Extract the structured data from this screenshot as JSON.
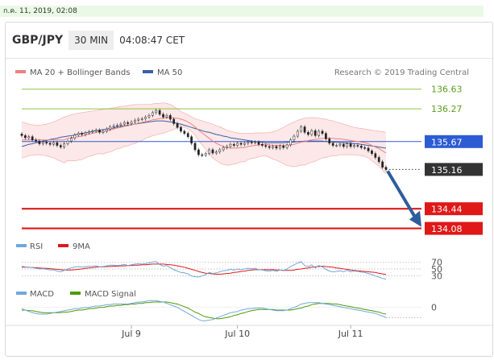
{
  "timestamp": "ก.ค. 11, 2019, 02:08",
  "header": {
    "pair": "GBP/JPY",
    "timeframe": "30 MIN",
    "time": "04:08:47 CET"
  },
  "legend": {
    "ma20": "MA 20 + Bollinger Bands",
    "ma50": "MA 50",
    "credit": "Research © 2019 Trading Central"
  },
  "colors": {
    "ma20": "#f08080",
    "ma50": "#3a5fa6",
    "green_line": "#8cc63f",
    "red_line": "#e01818",
    "blue_line": "#2d5bd4",
    "arrow": "#2e5d9e",
    "rsi": "#6fa8dc",
    "rsi_ma": "#e01818",
    "macd": "#6fa8dc",
    "macd_signal": "#4e9a06"
  },
  "chart_data": {
    "type": "line",
    "x_ticks": [
      "Jul 9",
      "Jul 10",
      "Jul 11"
    ],
    "price": {
      "ylim": [
        134.0,
        136.7
      ],
      "levels": [
        {
          "value": 136.63,
          "label": "136.63",
          "style": "green"
        },
        {
          "value": 136.27,
          "label": "136.27",
          "style": "green"
        },
        {
          "value": 135.67,
          "label": "135.67",
          "style": "blue"
        },
        {
          "value": 135.16,
          "label": "135.16",
          "style": "last"
        },
        {
          "value": 134.44,
          "label": "134.44",
          "style": "red"
        },
        {
          "value": 134.08,
          "label": "134.08",
          "style": "red"
        }
      ],
      "close": [
        135.78,
        135.74,
        135.76,
        135.7,
        135.68,
        135.63,
        135.66,
        135.64,
        135.62,
        135.65,
        135.6,
        135.57,
        135.63,
        135.68,
        135.73,
        135.79,
        135.82,
        135.8,
        135.83,
        135.85,
        135.86,
        135.88,
        135.84,
        135.86,
        135.9,
        135.94,
        135.96,
        135.97,
        135.99,
        136.02,
        136.0,
        136.03,
        136.06,
        136.08,
        136.09,
        136.12,
        136.15,
        136.2,
        136.24,
        136.17,
        136.12,
        136.15,
        136.08,
        136.0,
        135.93,
        135.86,
        135.82,
        135.76,
        135.64,
        135.52,
        135.43,
        135.42,
        135.45,
        135.52,
        135.46,
        135.48,
        135.52,
        135.56,
        135.58,
        135.62,
        135.6,
        135.64,
        135.62,
        135.64,
        135.66,
        135.65,
        135.66,
        135.62,
        135.6,
        135.58,
        135.56,
        135.58,
        135.55,
        135.59,
        135.56,
        135.61,
        135.7,
        135.77,
        135.86,
        135.94,
        135.84,
        135.8,
        135.87,
        135.78,
        135.86,
        135.82,
        135.72,
        135.64,
        135.6,
        135.6,
        135.62,
        135.58,
        135.63,
        135.58,
        135.6,
        135.59,
        135.56,
        135.55,
        135.5,
        135.45,
        135.38,
        135.3,
        135.2,
        135.16
      ],
      "ma20": [
        135.7,
        135.7,
        135.7,
        135.7,
        135.7,
        135.7,
        135.7,
        135.7,
        135.7,
        135.7,
        135.7,
        135.7,
        135.7,
        135.73,
        135.74,
        135.75,
        135.76,
        135.77,
        135.79,
        135.81,
        135.82,
        135.84,
        135.85,
        135.85,
        135.87,
        135.88,
        135.9,
        135.92,
        135.93,
        135.95,
        135.96,
        135.98,
        135.99,
        136.01,
        136.02,
        136.04,
        136.05,
        136.07,
        136.08,
        136.09,
        136.1,
        136.11,
        136.11,
        136.1,
        136.1,
        136.08,
        136.06,
        136.03,
        135.99,
        135.94,
        135.88,
        135.83,
        135.78,
        135.73,
        135.68,
        135.64,
        135.61,
        135.58,
        135.56,
        135.55,
        135.55,
        135.55,
        135.56,
        135.56,
        135.58,
        135.59,
        135.6,
        135.61,
        135.62,
        135.62,
        135.61,
        135.6,
        135.6,
        135.6,
        135.6,
        135.6,
        135.61,
        135.62,
        135.64,
        135.66,
        135.67,
        135.69,
        135.7,
        135.71,
        135.72,
        135.73,
        135.73,
        135.73,
        135.73,
        135.72,
        135.72,
        135.71,
        135.7,
        135.69,
        135.68,
        135.67,
        135.66,
        135.65,
        135.63,
        135.6,
        135.57,
        135.54,
        135.5,
        135.46
      ],
      "ma50": [
        135.58,
        135.6,
        135.62,
        135.63,
        135.65,
        135.66,
        135.68,
        135.69,
        135.71,
        135.72,
        135.73,
        135.75,
        135.76,
        135.77,
        135.78,
        135.79,
        135.81,
        135.82,
        135.83,
        135.84,
        135.86,
        135.87,
        135.88,
        135.89,
        135.9,
        135.91,
        135.92,
        135.94,
        135.95,
        135.96,
        135.97,
        135.98,
        135.99,
        136.0,
        136.01,
        136.02,
        136.03,
        136.04,
        136.05,
        136.05,
        136.05,
        136.04,
        136.03,
        136.02,
        136.0,
        135.99,
        135.97,
        135.95,
        135.93,
        135.91,
        135.89,
        135.87,
        135.85,
        135.84,
        135.82,
        135.8,
        135.79,
        135.77,
        135.76,
        135.74,
        135.73,
        135.72,
        135.71,
        135.7,
        135.69,
        135.68,
        135.67,
        135.66,
        135.66,
        135.65,
        135.65,
        135.65,
        135.65,
        135.65,
        135.65,
        135.66,
        135.66,
        135.66,
        135.67,
        135.67,
        135.68,
        135.68,
        135.68,
        135.68,
        135.68,
        135.68,
        135.67,
        135.67,
        135.66,
        135.66,
        135.65,
        135.65,
        135.64,
        135.64,
        135.63,
        135.63,
        135.62,
        135.61,
        135.6,
        135.59,
        135.58,
        135.57,
        135.56,
        135.55
      ],
      "band_upper": [
        136.03,
        136.01,
        135.99,
        135.98,
        135.97,
        135.97,
        135.98,
        135.99,
        136.01,
        136.03,
        136.06,
        136.09,
        136.12,
        136.14,
        136.16,
        136.18,
        136.19,
        136.2,
        136.21,
        136.22,
        136.23,
        136.24,
        136.25,
        136.26,
        136.27,
        136.28,
        136.29,
        136.3,
        136.31,
        136.32,
        136.33,
        136.34,
        136.35,
        136.35,
        136.35,
        136.35,
        136.35,
        136.36,
        136.37,
        136.37,
        136.38,
        136.37,
        136.35,
        136.31,
        136.27,
        136.22,
        136.19,
        136.16,
        136.12,
        136.09,
        136.07,
        136.05,
        136.03,
        136.01,
        135.99,
        135.96,
        135.94,
        135.91,
        135.88,
        135.86,
        135.84,
        135.83,
        135.82,
        135.82,
        135.82,
        135.82,
        135.83,
        135.83,
        135.83,
        135.83,
        135.84,
        135.85,
        135.87,
        135.9,
        135.93,
        135.97,
        136.0,
        136.03,
        136.06,
        136.08,
        136.1,
        136.11,
        136.11,
        136.11,
        136.1,
        136.09,
        136.08,
        136.06,
        136.05,
        136.03,
        136.01,
        135.99,
        135.97,
        135.95,
        135.93,
        135.92,
        135.91,
        135.9,
        135.89,
        135.88,
        135.87,
        135.86,
        135.85,
        135.84
      ],
      "band_lower": [
        135.37,
        135.39,
        135.41,
        135.42,
        135.43,
        135.43,
        135.42,
        135.41,
        135.39,
        135.37,
        135.34,
        135.31,
        135.28,
        135.32,
        135.32,
        135.32,
        135.33,
        135.34,
        135.37,
        135.4,
        135.41,
        135.44,
        135.45,
        135.44,
        135.47,
        135.48,
        135.51,
        135.54,
        135.55,
        135.58,
        135.59,
        135.62,
        135.63,
        135.67,
        135.69,
        135.73,
        135.75,
        135.78,
        135.79,
        135.81,
        135.82,
        135.85,
        135.87,
        135.89,
        135.93,
        135.94,
        135.93,
        135.9,
        135.86,
        135.79,
        135.69,
        135.61,
        135.53,
        135.45,
        135.37,
        135.32,
        135.28,
        135.25,
        135.24,
        135.24,
        135.26,
        135.27,
        135.3,
        135.3,
        135.34,
        135.36,
        135.37,
        135.39,
        135.41,
        135.41,
        135.38,
        135.35,
        135.33,
        135.3,
        135.27,
        135.23,
        135.22,
        135.21,
        135.22,
        135.24,
        135.24,
        135.27,
        135.29,
        135.31,
        135.34,
        135.37,
        135.38,
        135.4,
        135.41,
        135.41,
        135.43,
        135.43,
        135.43,
        135.43,
        135.43,
        135.42,
        135.41,
        135.4,
        135.37,
        135.32,
        135.27,
        135.22,
        135.15,
        135.08
      ]
    },
    "rsi": {
      "ylim": [
        20,
        80
      ],
      "levels": [
        70,
        50,
        30
      ],
      "legend": [
        "RSI",
        "9MA"
      ],
      "values": [
        58,
        56,
        55,
        54,
        52,
        50,
        51,
        49,
        47,
        48,
        44,
        42,
        46,
        50,
        53,
        56,
        57,
        55,
        57,
        58,
        58,
        59,
        56,
        57,
        59,
        61,
        61,
        60,
        61,
        63,
        60,
        62,
        64,
        65,
        64,
        66,
        67,
        70,
        71,
        63,
        58,
        60,
        54,
        48,
        44,
        40,
        39,
        36,
        30,
        28,
        27,
        30,
        34,
        40,
        37,
        39,
        42,
        45,
        46,
        49,
        47,
        50,
        48,
        50,
        52,
        51,
        52,
        48,
        47,
        45,
        44,
        46,
        43,
        47,
        45,
        50,
        57,
        62,
        67,
        71,
        60,
        57,
        62,
        53,
        60,
        56,
        49,
        44,
        42,
        43,
        45,
        42,
        46,
        42,
        44,
        43,
        41,
        40,
        37,
        34,
        30,
        27,
        23,
        21
      ],
      "ma": [
        55,
        55,
        55,
        54,
        54,
        53,
        52,
        52,
        51,
        50,
        49,
        48,
        47,
        47,
        47,
        48,
        49,
        50,
        52,
        53,
        54,
        55,
        56,
        56,
        57,
        57,
        58,
        58,
        59,
        59,
        60,
        60,
        61,
        61,
        62,
        62,
        63,
        64,
        64,
        64,
        64,
        63,
        62,
        61,
        59,
        57,
        55,
        52,
        49,
        46,
        43,
        40,
        38,
        37,
        36,
        35,
        35,
        36,
        37,
        38,
        40,
        41,
        43,
        44,
        46,
        47,
        48,
        48,
        48,
        48,
        48,
        48,
        47,
        47,
        46,
        46,
        46,
        47,
        49,
        50,
        52,
        53,
        55,
        56,
        57,
        58,
        57,
        56,
        55,
        53,
        52,
        50,
        49,
        47,
        46,
        45,
        44,
        43,
        42,
        41,
        40,
        38,
        36,
        34
      ]
    },
    "macd": {
      "zero_label": "0",
      "legend": [
        "MACD",
        "MACD Signal"
      ],
      "macd": [
        -0.02,
        -0.04,
        -0.06,
        -0.08,
        -0.09,
        -0.1,
        -0.1,
        -0.1,
        -0.09,
        -0.08,
        -0.07,
        -0.06,
        -0.05,
        -0.04,
        -0.03,
        -0.02,
        -0.02,
        -0.01,
        0.0,
        0.0,
        0.01,
        0.02,
        0.02,
        0.03,
        0.04,
        0.04,
        0.05,
        0.05,
        0.05,
        0.05,
        0.05,
        0.06,
        0.07,
        0.08,
        0.08,
        0.09,
        0.1,
        0.1,
        0.1,
        0.09,
        0.08,
        0.06,
        0.04,
        0.02,
        0.0,
        -0.03,
        -0.06,
        -0.09,
        -0.12,
        -0.15,
        -0.18,
        -0.2,
        -0.2,
        -0.19,
        -0.18,
        -0.16,
        -0.14,
        -0.12,
        -0.1,
        -0.08,
        -0.07,
        -0.06,
        -0.04,
        -0.03,
        -0.02,
        -0.02,
        -0.01,
        -0.01,
        -0.01,
        -0.02,
        -0.03,
        -0.04,
        -0.05,
        -0.05,
        -0.05,
        -0.04,
        -0.02,
        0.0,
        0.02,
        0.05,
        0.06,
        0.07,
        0.07,
        0.07,
        0.07,
        0.06,
        0.05,
        0.04,
        0.03,
        0.02,
        0.01,
        0.0,
        -0.01,
        -0.02,
        -0.03,
        -0.04,
        -0.05,
        -0.06,
        -0.07,
        -0.08,
        -0.09,
        -0.11,
        -0.13,
        -0.15
      ],
      "signal": [
        -0.04,
        -0.04,
        -0.05,
        -0.05,
        -0.06,
        -0.07,
        -0.08,
        -0.08,
        -0.08,
        -0.08,
        -0.08,
        -0.08,
        -0.07,
        -0.07,
        -0.06,
        -0.05,
        -0.04,
        -0.04,
        -0.03,
        -0.02,
        -0.02,
        -0.01,
        0.0,
        0.0,
        0.01,
        0.02,
        0.02,
        0.03,
        0.03,
        0.04,
        0.04,
        0.05,
        0.05,
        0.06,
        0.06,
        0.07,
        0.07,
        0.08,
        0.08,
        0.08,
        0.08,
        0.08,
        0.07,
        0.06,
        0.05,
        0.03,
        0.01,
        -0.01,
        -0.04,
        -0.07,
        -0.09,
        -0.12,
        -0.14,
        -0.15,
        -0.16,
        -0.17,
        -0.17,
        -0.16,
        -0.15,
        -0.14,
        -0.12,
        -0.11,
        -0.09,
        -0.08,
        -0.06,
        -0.05,
        -0.04,
        -0.03,
        -0.03,
        -0.03,
        -0.03,
        -0.03,
        -0.04,
        -0.04,
        -0.04,
        -0.04,
        -0.04,
        -0.03,
        -0.02,
        -0.01,
        0.01,
        0.02,
        0.04,
        0.05,
        0.06,
        0.06,
        0.06,
        0.06,
        0.05,
        0.05,
        0.04,
        0.03,
        0.02,
        0.01,
        0.0,
        -0.01,
        -0.02,
        -0.03,
        -0.04,
        -0.05,
        -0.06,
        -0.07,
        -0.09,
        -0.1
      ]
    }
  }
}
